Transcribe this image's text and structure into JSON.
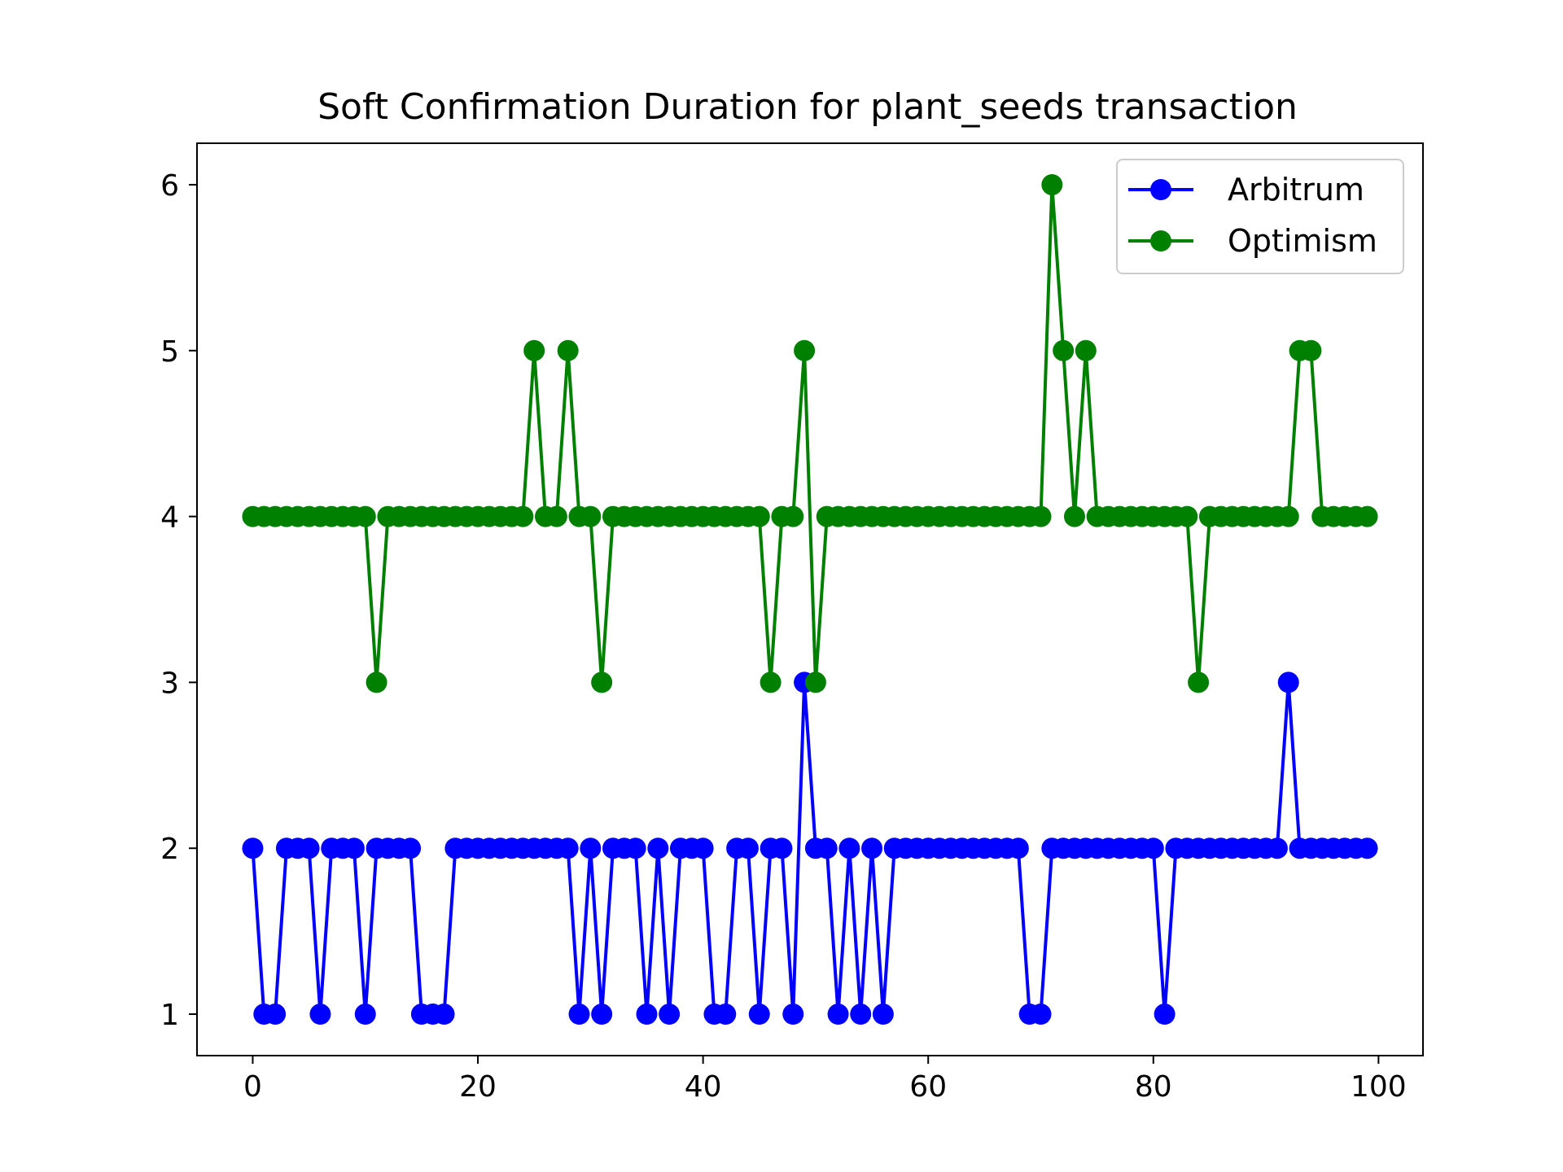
{
  "chart_data": {
    "type": "line",
    "title": "Soft Confirmation Duration for plant_seeds transaction",
    "xlabel": "",
    "ylabel": "",
    "xlim": [
      -4.95,
      103.95
    ],
    "ylim": [
      0.75,
      6.25
    ],
    "xticks": [
      0,
      20,
      40,
      60,
      80,
      100
    ],
    "yticks": [
      1,
      2,
      3,
      4,
      5,
      6
    ],
    "grid": false,
    "legend": "top-right",
    "x": [
      0,
      1,
      2,
      3,
      4,
      5,
      6,
      7,
      8,
      9,
      10,
      11,
      12,
      13,
      14,
      15,
      16,
      17,
      18,
      19,
      20,
      21,
      22,
      23,
      24,
      25,
      26,
      27,
      28,
      29,
      30,
      31,
      32,
      33,
      34,
      35,
      36,
      37,
      38,
      39,
      40,
      41,
      42,
      43,
      44,
      45,
      46,
      47,
      48,
      49,
      50,
      51,
      52,
      53,
      54,
      55,
      56,
      57,
      58,
      59,
      60,
      61,
      62,
      63,
      64,
      65,
      66,
      67,
      68,
      69,
      70,
      71,
      72,
      73,
      74,
      75,
      76,
      77,
      78,
      79,
      80,
      81,
      82,
      83,
      84,
      85,
      86,
      87,
      88,
      89,
      90,
      91,
      92,
      93,
      94,
      95,
      96,
      97,
      98,
      99
    ],
    "series": [
      {
        "name": "Arbitrum",
        "color": "#0000ff",
        "values": [
          2,
          1,
          1,
          2,
          2,
          2,
          1,
          2,
          2,
          2,
          1,
          2,
          2,
          2,
          2,
          1,
          1,
          1,
          2,
          2,
          2,
          2,
          2,
          2,
          2,
          2,
          2,
          2,
          2,
          1,
          2,
          1,
          2,
          2,
          2,
          1,
          2,
          1,
          2,
          2,
          2,
          1,
          1,
          2,
          2,
          1,
          2,
          2,
          1,
          3,
          2,
          2,
          1,
          2,
          1,
          2,
          1,
          2,
          2,
          2,
          2,
          2,
          2,
          2,
          2,
          2,
          2,
          2,
          2,
          1,
          1,
          2,
          2,
          2,
          2,
          2,
          2,
          2,
          2,
          2,
          2,
          1,
          2,
          2,
          2,
          2,
          2,
          2,
          2,
          2,
          2,
          2,
          3,
          2,
          2,
          2,
          2,
          2,
          2,
          2
        ]
      },
      {
        "name": "Optimism",
        "color": "#008000",
        "values": [
          4,
          4,
          4,
          4,
          4,
          4,
          4,
          4,
          4,
          4,
          4,
          3,
          4,
          4,
          4,
          4,
          4,
          4,
          4,
          4,
          4,
          4,
          4,
          4,
          4,
          5,
          4,
          4,
          5,
          4,
          4,
          3,
          4,
          4,
          4,
          4,
          4,
          4,
          4,
          4,
          4,
          4,
          4,
          4,
          4,
          4,
          3,
          4,
          4,
          5,
          3,
          4,
          4,
          4,
          4,
          4,
          4,
          4,
          4,
          4,
          4,
          4,
          4,
          4,
          4,
          4,
          4,
          4,
          4,
          4,
          4,
          6,
          5,
          4,
          5,
          4,
          4,
          4,
          4,
          4,
          4,
          4,
          4,
          4,
          3,
          4,
          4,
          4,
          4,
          4,
          4,
          4,
          4,
          5,
          5,
          4,
          4,
          4,
          4,
          4
        ]
      }
    ]
  }
}
